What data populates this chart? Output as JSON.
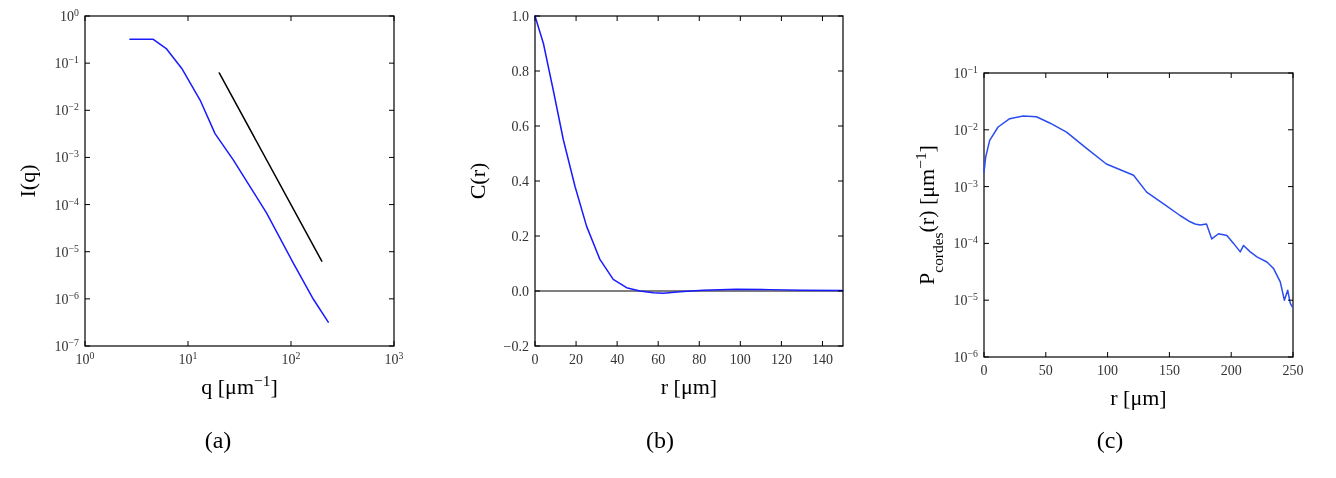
{
  "chart_data": [
    {
      "type": "line",
      "xlabel": "q [μm$^{−1}$]",
      "ylabel": "I(q)",
      "log": "xy",
      "xlim": [
        1,
        1000
      ],
      "ylim": [
        1e-07,
        1
      ],
      "xticks": [
        {
          "value": 1,
          "label": "10$^{0}$"
        },
        {
          "value": 10,
          "label": "10$^{1}$"
        },
        {
          "value": 100,
          "label": "10$^{2}$"
        },
        {
          "value": 1000,
          "label": "10$^{3}$"
        }
      ],
      "yticks": [
        {
          "value": 1e-07,
          "label": "10$^{−7}$"
        },
        {
          "value": 1e-06,
          "label": "10$^{−6}$"
        },
        {
          "value": 1e-05,
          "label": "10$^{−5}$"
        },
        {
          "value": 0.0001,
          "label": "10$^{−4}$"
        },
        {
          "value": 0.001,
          "label": "10$^{−3}$"
        },
        {
          "value": 0.01,
          "label": "10$^{−2}$"
        },
        {
          "value": 0.1,
          "label": "10$^{−1}$"
        },
        {
          "value": 1,
          "label": "10$^{0}$"
        }
      ],
      "series": [
        {
          "color": "#1a1aff",
          "x": [
            2.73,
            4.6,
            6.2,
            8.7,
            13.1,
            18.3,
            27.5,
            58,
            105,
            165,
            230
          ],
          "values": [
            0.32,
            0.32,
            0.2,
            0.077,
            0.0165,
            0.0032,
            0.00089,
            6.6e-05,
            5.8e-06,
            9.8e-07,
            3.2e-07
          ]
        },
        {
          "color": "#000000",
          "x": [
            20.1,
            199
          ],
          "values": [
            0.062,
            6.3e-06
          ]
        }
      ],
      "annotations": [
        "(a)"
      ]
    },
    {
      "type": "line",
      "xlabel": "r [μm]",
      "ylabel": "C(r)",
      "xlim": [
        0,
        150
      ],
      "ylim": [
        -0.2,
        1.0
      ],
      "xticks": [
        0,
        20,
        40,
        60,
        80,
        100,
        120,
        140
      ],
      "yticks": [
        {
          "value": -0.2,
          "label": "−0.2"
        },
        {
          "value": 0,
          "label": "0.0"
        },
        {
          "value": 0.2,
          "label": "0.2"
        },
        {
          "value": 0.4,
          "label": "0.4"
        },
        {
          "value": 0.6,
          "label": "0.6"
        },
        {
          "value": 0.8,
          "label": "0.8"
        },
        {
          "value": 1.0,
          "label": "1.0"
        }
      ],
      "series": [
        {
          "color": "#1a1aff",
          "x": [
            0,
            4.1,
            8.9,
            13.8,
            19.5,
            25.1,
            31.6,
            38.1,
            44.6,
            51.1,
            57.6,
            62.5,
            70.6,
            81.9,
            98,
            114,
            130,
            150
          ],
          "values": [
            1.0,
            0.9,
            0.73,
            0.55,
            0.38,
            0.236,
            0.115,
            0.042,
            0.012,
            0,
            -0.006,
            -0.008,
            -0.003,
            0.003,
            0.006,
            0.005,
            0.003,
            0.002
          ]
        }
      ],
      "ref_lines": [
        {
          "axis": "y",
          "value": 0,
          "color": "#000000"
        }
      ],
      "annotations": [
        "(b)"
      ]
    },
    {
      "type": "line",
      "xlabel": "r [μm]",
      "ylabel": "P$_{cordes}$(r) [μm$^{−1}$]",
      "log": "y",
      "xlim": [
        0,
        250
      ],
      "ylim": [
        1e-06,
        0.1
      ],
      "xticks": [
        0,
        50,
        100,
        150,
        200,
        250
      ],
      "yticks": [
        {
          "value": 1e-06,
          "label": "10$^{−6}$"
        },
        {
          "value": 1e-05,
          "label": "10$^{−5}$"
        },
        {
          "value": 0.0001,
          "label": "10$^{−4}$"
        },
        {
          "value": 0.001,
          "label": "10$^{−3}$"
        },
        {
          "value": 0.01,
          "label": "10$^{−2}$"
        },
        {
          "value": 0.1,
          "label": "10$^{−1}$"
        }
      ],
      "series": [
        {
          "color": "#2b4cf0",
          "x": [
            0,
            1.35,
            4.6,
            11.4,
            20.8,
            31.6,
            42.4,
            53.2,
            66.8,
            83,
            99,
            121,
            131.6,
            145,
            158.6,
            166.8,
            170.8,
            174.9,
            180,
            184.3,
            189.7,
            196.5,
            201.9,
            207.3,
            210,
            215.4,
            220.8,
            228.9,
            234.3,
            239.7,
            243,
            245.7,
            247.8,
            249.5
          ],
          "values": [
            0.0018,
            0.0033,
            0.0065,
            0.0112,
            0.0157,
            0.0175,
            0.017,
            0.0132,
            0.0091,
            0.0047,
            0.0025,
            0.00158,
            0.0008,
            0.0005,
            0.00031,
            0.00024,
            0.00022,
            0.00021,
            0.00022,
            0.00012,
            0.000148,
            0.000138,
            0.0001,
            7.1e-05,
            9.2e-05,
            7.1e-05,
            5.8e-05,
            4.7e-05,
            3.6e-05,
            2.1e-05,
            1e-05,
            1.5e-05,
            8.8e-06,
            7.6e-06
          ]
        }
      ],
      "annotations": [
        "(c)"
      ]
    }
  ]
}
